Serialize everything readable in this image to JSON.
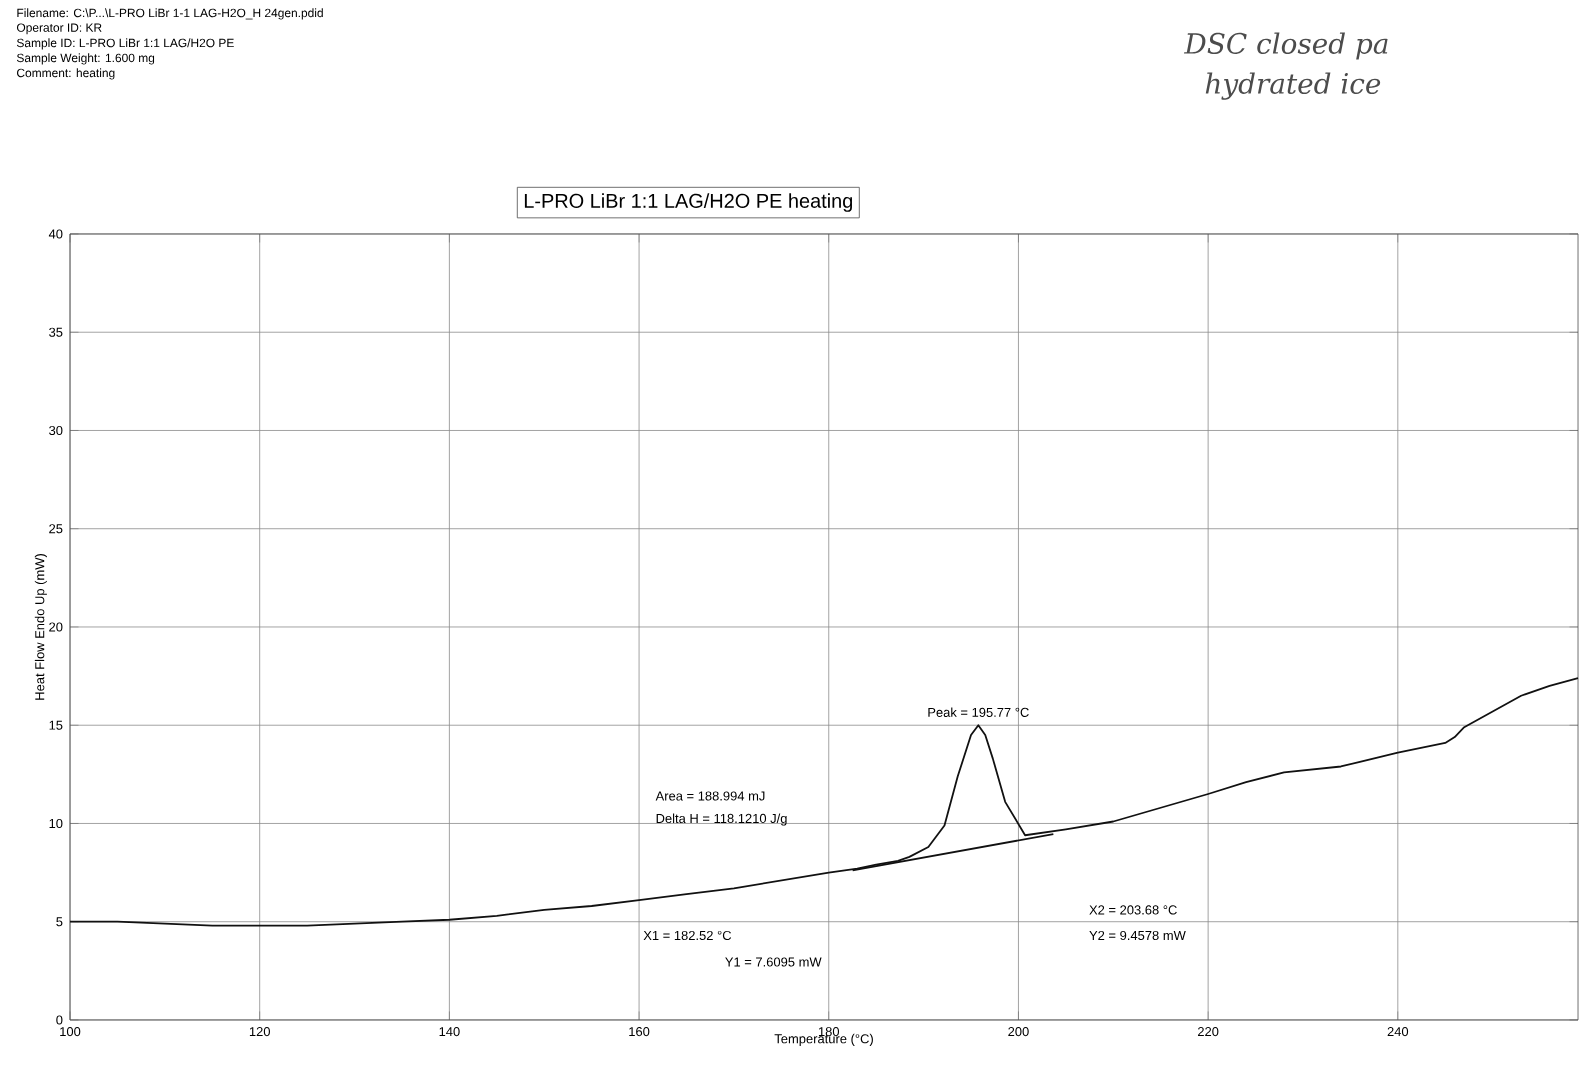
{
  "chart_data": {
    "type": "line",
    "title": "L-PRO LiBr 1:1 LAG/H2O PE heating",
    "xlabel": "Temperature (°C)",
    "ylabel": "Heat Flow Endo Up (mW)",
    "xlim": [
      100,
      259
    ],
    "ylim": [
      0,
      40
    ],
    "xticks": [
      100,
      120,
      140,
      160,
      180,
      200,
      220,
      240
    ],
    "yticks": [
      0,
      5,
      10,
      15,
      20,
      25,
      30,
      35,
      40
    ],
    "grid": true,
    "marker": "none",
    "line_style": "solid",
    "series": [
      {
        "color": "#111111",
        "x": [
          100,
          105,
          110,
          115,
          120,
          125,
          130,
          135,
          140,
          145,
          150,
          155,
          160,
          165,
          170,
          175,
          180,
          183,
          185,
          187.3,
          188.5,
          190.5,
          192.2,
          193.6,
          195,
          195.77,
          196.5,
          197.3,
          198.6,
          200.7,
          205,
          210,
          215,
          220,
          224,
          228,
          234,
          240,
          245,
          246,
          247,
          250,
          253,
          256,
          259
        ],
        "values": [
          5.0,
          5.0,
          4.9,
          4.8,
          4.8,
          4.8,
          4.9,
          5.0,
          5.1,
          5.3,
          5.6,
          5.8,
          6.1,
          6.4,
          6.7,
          7.1,
          7.5,
          7.7,
          7.9,
          8.1,
          8.3,
          8.8,
          9.9,
          12.4,
          14.5,
          15.0,
          14.5,
          13.3,
          11.1,
          9.4,
          9.7,
          10.1,
          10.8,
          11.5,
          12.1,
          12.6,
          12.9,
          13.6,
          14.1,
          14.4,
          14.9,
          15.7,
          16.5,
          17.0,
          17.4
        ]
      },
      {
        "color": "#111111",
        "x": [
          182.52,
          203.68
        ],
        "values": [
          7.61,
          9.46
        ]
      }
    ],
    "annotations": [
      "Filename: C:\\P...\\L-PRO LiBr 1-1 LAG-H2O_H 24gen.pdid",
      "Operator ID: KR",
      "Sample ID: L-PRO LiBr 1:1 LAG/H2O PE",
      "Sample Weight: 1.600 mg",
      "Comment: heating",
      "DSC closed pa",
      "hydrated ice",
      "Area = 188.994 mJ",
      "Delta H = 118.1210 J/g",
      {
        "text": "Peak = 195.77 °C",
        "x": 195.77,
        "y": 15.0
      },
      "X1 = 182.52 °C",
      "Y1 = 7.6095 mW",
      "X2 = 203.68 °C",
      "Y2 = 9.4578 mW"
    ]
  }
}
